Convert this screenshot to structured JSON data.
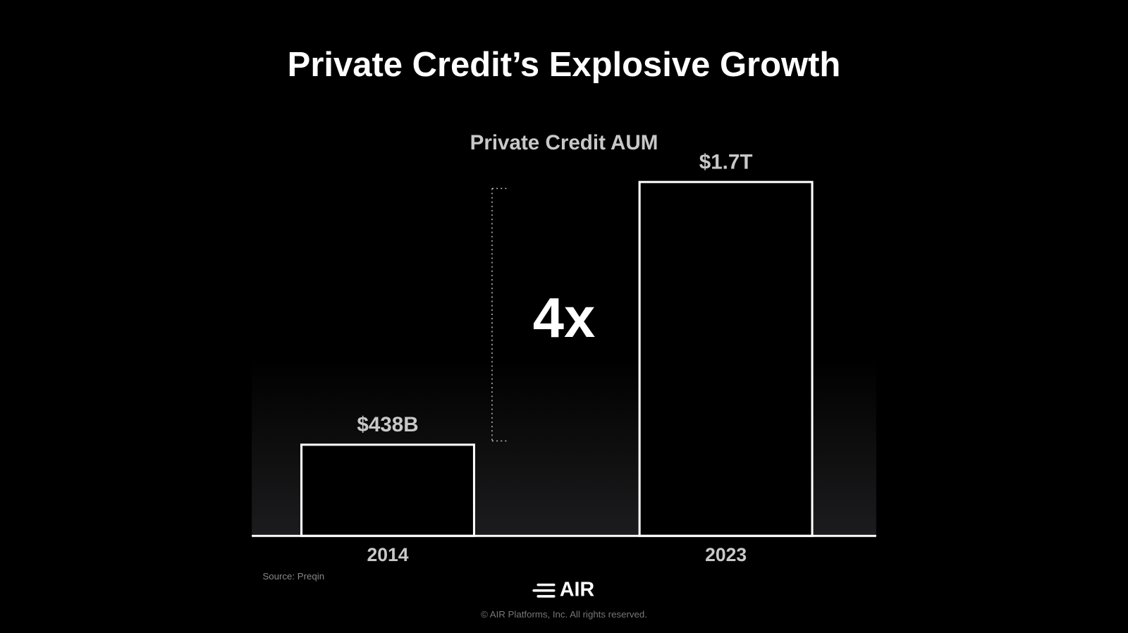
{
  "chart_data": {
    "type": "bar",
    "title": "Private Credit’s Explosive Growth",
    "subtitle": "Private Credit AUM",
    "annotation": "4x",
    "source": "Source: Preqin",
    "categories": [
      "2014",
      "2023"
    ],
    "values": [
      438,
      1700
    ],
    "value_labels": [
      "$438B",
      "$1.7T"
    ],
    "color": "#ffffff"
  },
  "footer": {
    "logo": "AIR",
    "copyright": "© AIR Platforms, Inc. All rights reserved."
  }
}
